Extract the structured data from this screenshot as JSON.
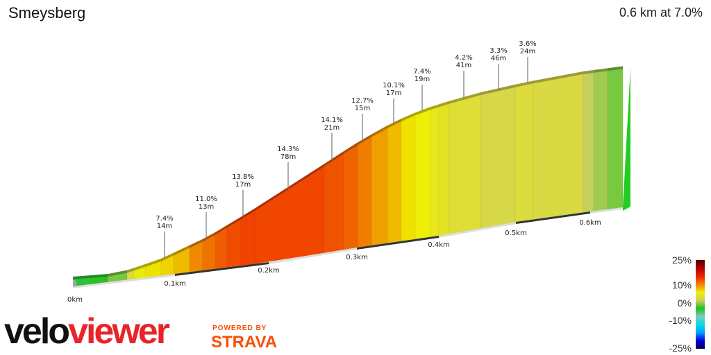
{
  "header": {
    "title": "Smeysberg",
    "summary": "0.6 km at 7.0%"
  },
  "branding": {
    "logo_part1": "velo",
    "logo_part2": "viewer",
    "powered_by": "POWERED BY",
    "strava": "STRAVA"
  },
  "chart_data": {
    "type": "area",
    "title": "Smeysberg",
    "xlabel": "",
    "ylabel": "",
    "x_ticks": [
      "0km",
      "0.1km",
      "0.2km",
      "0.3km",
      "0.4km",
      "0.5km",
      "0.6km"
    ],
    "segments": [
      {
        "grade": -3
      },
      {
        "grade": -2
      },
      {
        "grade": 0
      },
      {
        "grade": 4
      },
      {
        "grade": 6
      },
      {
        "grade": 7.4
      },
      {
        "grade": 8
      },
      {
        "grade": 9
      },
      {
        "grade": 11
      },
      {
        "grade": 12
      },
      {
        "grade": 13
      },
      {
        "grade": 13.8
      },
      {
        "grade": 14.3
      },
      {
        "grade": 14.1
      },
      {
        "grade": 13.5
      },
      {
        "grade": 12.7
      },
      {
        "grade": 11.5
      },
      {
        "grade": 10.1
      },
      {
        "grade": 9
      },
      {
        "grade": 7.4
      },
      {
        "grade": 6.5
      },
      {
        "grade": 5.5
      },
      {
        "grade": 5
      },
      {
        "grade": 4.2
      },
      {
        "grade": 3.3
      },
      {
        "grade": 4
      },
      {
        "grade": 3.6
      },
      {
        "grade": 2
      },
      {
        "grade": 1
      },
      {
        "grade": 0
      }
    ],
    "annotations": [
      {
        "grade": "7.4%",
        "length": "14m"
      },
      {
        "grade": "11.0%",
        "length": "13m"
      },
      {
        "grade": "13.8%",
        "length": "17m"
      },
      {
        "grade": "14.3%",
        "length": "78m"
      },
      {
        "grade": "14.1%",
        "length": "21m"
      },
      {
        "grade": "12.7%",
        "length": "15m"
      },
      {
        "grade": "10.1%",
        "length": "17m"
      },
      {
        "grade": "7.4%",
        "length": "19m"
      },
      {
        "grade": "4.2%",
        "length": "41m"
      },
      {
        "grade": "3.3%",
        "length": "46m"
      },
      {
        "grade": "3.6%",
        "length": "24m"
      }
    ],
    "legend": {
      "labels": [
        "25%",
        "10%",
        "0%",
        "-10%",
        "-25%"
      ],
      "range": [
        -25,
        25
      ],
      "colors": [
        "#000050",
        "#0000e0",
        "#00a0ff",
        "#00e0e0",
        "#80c8c0",
        "#20c020",
        "#d0d060",
        "#f0f000",
        "#f08000",
        "#f02000",
        "#b00000",
        "#500000"
      ]
    }
  }
}
